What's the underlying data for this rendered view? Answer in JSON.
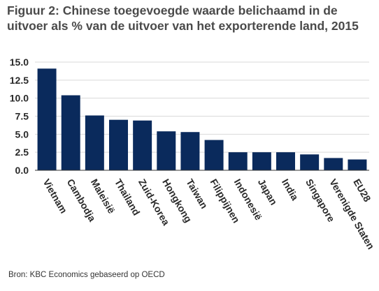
{
  "title": "Figuur 2: Chinese toegevoegde waarde belichaamd in de uitvoer als % van de uitvoer van het exporterende land, 2015",
  "source": "Bron: KBC Economics gebaseerd op OECD",
  "colors": {
    "bar": "#0a2a5c",
    "grid": "#d9d9d9",
    "axis": "#333333"
  },
  "chart_data": {
    "type": "bar",
    "title": "Figuur 2: Chinese toegevoegde waarde belichaamd in de uitvoer als % van de uitvoer van het exporterende land, 2015",
    "xlabel": "",
    "ylabel": "",
    "ylim": [
      0,
      15
    ],
    "yticks": [
      "15.0",
      "12.5",
      "10.0",
      "7.5",
      "5.0",
      "2.5",
      "0.0"
    ],
    "yticks_values": [
      15,
      12.5,
      10,
      7.5,
      5,
      2.5,
      0
    ],
    "grid": true,
    "categories": [
      "Vietnam",
      "Cambodja",
      "Maleisië",
      "Thailand",
      "Zuid-Korea",
      "Hongkong",
      "Taiwan",
      "Filippijnen",
      "Indonesië",
      "Japan",
      "India",
      "Singapore",
      "Verenigde Staten",
      "EU28"
    ],
    "values": [
      14.1,
      10.4,
      7.6,
      7.0,
      6.9,
      5.4,
      5.3,
      4.2,
      2.5,
      2.5,
      2.5,
      2.2,
      1.7,
      1.5
    ]
  }
}
